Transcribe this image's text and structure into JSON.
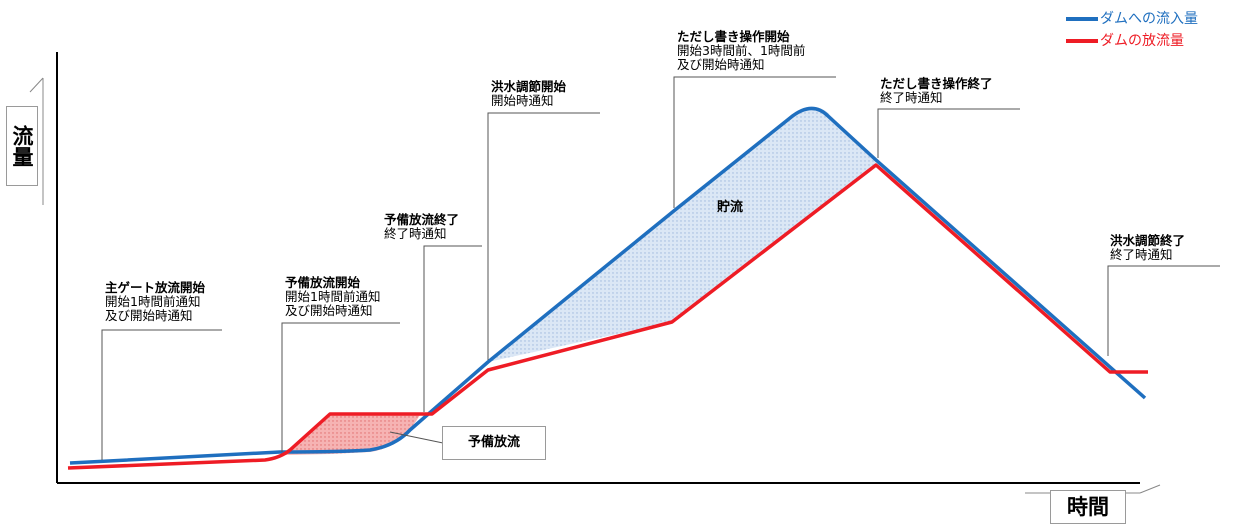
{
  "legend": {
    "inflow": {
      "label": "ダムへの流入量",
      "color": "#1f6fbf"
    },
    "outflow": {
      "label": "ダムの放流量",
      "color": "#ee1c25"
    }
  },
  "axes": {
    "y_label": "流量",
    "x_label": "時間"
  },
  "fills": {
    "storage_label": "貯流",
    "pre_release_label": "予備放流",
    "storage_color": "#d6e4f4",
    "pre_release_color": "#f4a0a0"
  },
  "annotations": [
    {
      "id": "main_gate",
      "title": "主ゲート放流開始",
      "lines": [
        "開始1時間前通知",
        "及び開始時通知"
      ]
    },
    {
      "id": "pre_release_start",
      "title": "予備放流開始",
      "lines": [
        "開始1時間前通知",
        "及び開始時通知"
      ]
    },
    {
      "id": "pre_release_end",
      "title": "予備放流終了",
      "lines": [
        "終了時通知"
      ]
    },
    {
      "id": "flood_control_start",
      "title": "洪水調節開始",
      "lines": [
        "開始時通知"
      ]
    },
    {
      "id": "proviso_start",
      "title": "ただし書き操作開始",
      "lines": [
        "開始3時間前、1時間前",
        "及び開始時通知"
      ]
    },
    {
      "id": "proviso_end",
      "title": "ただし書き操作終了",
      "lines": [
        "終了時通知"
      ]
    },
    {
      "id": "flood_control_end",
      "title": "洪水調節終了",
      "lines": [
        "終了時通知"
      ]
    }
  ]
}
